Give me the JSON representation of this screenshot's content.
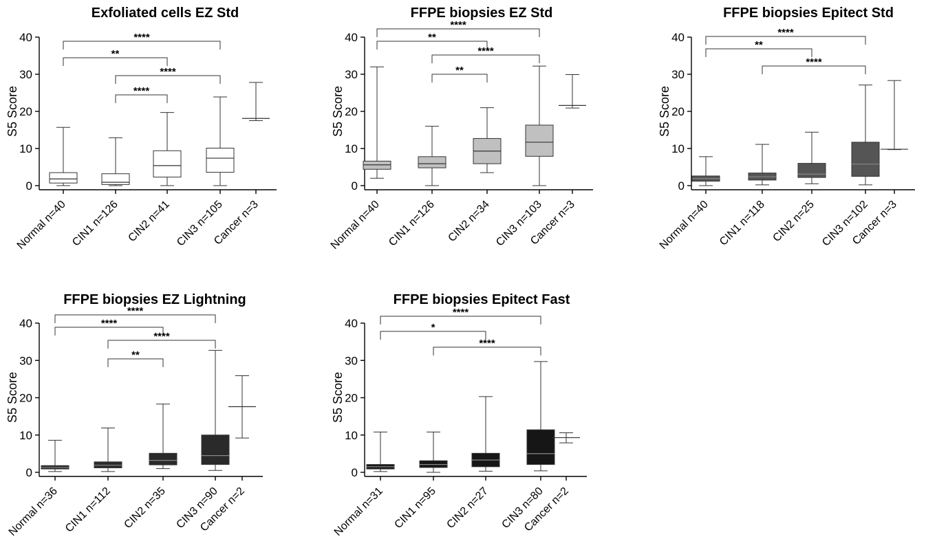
{
  "chart_data": [
    {
      "type": "box",
      "title": "Exfoliated cells EZ Std",
      "ylabel": "S5 Score",
      "ylim": [
        0,
        40
      ],
      "yticks": [
        "0",
        "10",
        "20",
        "30",
        "40"
      ],
      "box_color": "#ffffff",
      "categories": [
        "Normal n=40",
        "CIN1 n=126",
        "CIN2 n=41",
        "CIN3 n=105",
        "Cancer n=3"
      ],
      "boxes": [
        {
          "min": 0,
          "q1": 0.7,
          "median": 1.8,
          "q3": 3.5,
          "max": 15.7
        },
        {
          "min": 0,
          "q1": 0.3,
          "median": 0.9,
          "q3": 3.2,
          "max": 12.9
        },
        {
          "min": 0,
          "q1": 2.3,
          "median": 5.4,
          "q3": 9.4,
          "max": 19.7
        },
        {
          "min": 0,
          "q1": 3.6,
          "median": 7.4,
          "q3": 10.1,
          "max": 23.9
        },
        {
          "min": 17.5,
          "q1": 18.1,
          "median": 18.1,
          "q3": 18.1,
          "max": 27.8
        }
      ],
      "significance": [
        {
          "from": 0,
          "to": 3,
          "label": "****"
        },
        {
          "from": 0,
          "to": 2,
          "label": "**"
        },
        {
          "from": 1,
          "to": 3,
          "label": "****"
        },
        {
          "from": 1,
          "to": 2,
          "label": "****"
        }
      ]
    },
    {
      "type": "box",
      "title": "FFPE biopsies EZ Std",
      "ylabel": "S5 Score",
      "ylim": [
        0,
        40
      ],
      "yticks": [
        "0",
        "10",
        "20",
        "30",
        "40"
      ],
      "box_color": "#c0c0c0",
      "categories": [
        "Normal n=40",
        "CIN1 n=126",
        "CIN2 n=34",
        "CIN3 n=103",
        "Cancer n=3"
      ],
      "boxes": [
        {
          "min": 2,
          "q1": 4.4,
          "median": 5.6,
          "q3": 6.6,
          "max": 32
        },
        {
          "min": 0,
          "q1": 4.8,
          "median": 5.9,
          "q3": 7.8,
          "max": 16
        },
        {
          "min": 3.5,
          "q1": 5.9,
          "median": 9.3,
          "q3": 12.7,
          "max": 21
        },
        {
          "min": 0,
          "q1": 7.9,
          "median": 11.7,
          "q3": 16.3,
          "max": 32.2
        },
        {
          "min": 20.9,
          "q1": 21.6,
          "median": 21.6,
          "q3": 21.6,
          "max": 29.9
        }
      ],
      "significance": [
        {
          "from": 0,
          "to": 3,
          "label": "****"
        },
        {
          "from": 0,
          "to": 2,
          "label": "**"
        },
        {
          "from": 1,
          "to": 3,
          "label": "****"
        },
        {
          "from": 1,
          "to": 2,
          "label": "**"
        }
      ]
    },
    {
      "type": "box",
      "title": "FFPE biopsies Epitect Std",
      "ylabel": "S5 Score",
      "ylim": [
        0,
        40
      ],
      "yticks": [
        "0",
        "10",
        "20",
        "30",
        "40"
      ],
      "box_color": "#555555",
      "categories": [
        "Normal n=40",
        "CIN1 n=118",
        "CIN2 n=25",
        "CIN3 n=102",
        "Cancer n=3"
      ],
      "boxes": [
        {
          "min": 0,
          "q1": 1.2,
          "median": 1.9,
          "q3": 2.6,
          "max": 7.8
        },
        {
          "min": 0.2,
          "q1": 1.5,
          "median": 2.4,
          "q3": 3.4,
          "max": 11.1
        },
        {
          "min": 0.5,
          "q1": 2.2,
          "median": 3.1,
          "q3": 6,
          "max": 14.4
        },
        {
          "min": 0.2,
          "q1": 2.5,
          "median": 5.8,
          "q3": 11.7,
          "max": 27.1
        },
        {
          "min": 9.7,
          "q1": 9.8,
          "median": 9.8,
          "q3": 9.8,
          "max": 28.3
        }
      ],
      "significance": [
        {
          "from": 0,
          "to": 3,
          "label": "****"
        },
        {
          "from": 0,
          "to": 2,
          "label": "**"
        },
        {
          "from": 1,
          "to": 3,
          "label": "****"
        }
      ]
    },
    {
      "type": "box",
      "title": "FFPE biopsies EZ Lightning",
      "ylabel": "S5 Score",
      "ylim": [
        0,
        40
      ],
      "yticks": [
        "0",
        "10",
        "20",
        "30",
        "40"
      ],
      "box_color": "#2a2a2a",
      "categories": [
        "Normal n=36",
        "CIN1 n=112",
        "CIN2 n=35",
        "CIN3 n=90",
        "Cancer n=2"
      ],
      "boxes": [
        {
          "min": 0.2,
          "q1": 0.9,
          "median": 1.3,
          "q3": 1.8,
          "max": 8.6
        },
        {
          "min": 0.2,
          "q1": 1.2,
          "median": 1.9,
          "q3": 2.8,
          "max": 11.9
        },
        {
          "min": 1,
          "q1": 2,
          "median": 3.2,
          "q3": 5.1,
          "max": 18.3
        },
        {
          "min": 0.5,
          "q1": 2.1,
          "median": 4.5,
          "q3": 10,
          "max": 32.7
        },
        {
          "min": 9.2,
          "q1": 17.6,
          "median": 17.6,
          "q3": 17.6,
          "max": 25.9
        }
      ],
      "significance": [
        {
          "from": 0,
          "to": 3,
          "label": "****"
        },
        {
          "from": 0,
          "to": 2,
          "label": "****"
        },
        {
          "from": 1,
          "to": 3,
          "label": "****"
        },
        {
          "from": 1,
          "to": 2,
          "label": "**"
        }
      ]
    },
    {
      "type": "box",
      "title": "FFPE biopsies Epitect Fast",
      "ylabel": "S5 Score",
      "ylim": [
        0,
        40
      ],
      "yticks": [
        "0",
        "10",
        "20",
        "30",
        "40"
      ],
      "box_color": "#161616",
      "categories": [
        "Normal n=31",
        "CIN1 n=95",
        "CIN2 n=27",
        "CIN3 n=80",
        "Cancer n=2"
      ],
      "boxes": [
        {
          "min": 0.2,
          "q1": 0.9,
          "median": 1.5,
          "q3": 2.1,
          "max": 10.8
        },
        {
          "min": 0,
          "q1": 1.3,
          "median": 2.1,
          "q3": 3.1,
          "max": 10.8
        },
        {
          "min": 0.3,
          "q1": 1.5,
          "median": 3.3,
          "q3": 5.1,
          "max": 20.3
        },
        {
          "min": 0.4,
          "q1": 2.1,
          "median": 5,
          "q3": 11.4,
          "max": 29.7
        },
        {
          "min": 7.9,
          "q1": 9.3,
          "median": 9.3,
          "q3": 9.3,
          "max": 10.6
        }
      ],
      "significance": [
        {
          "from": 0,
          "to": 3,
          "label": "****"
        },
        {
          "from": 0,
          "to": 2,
          "label": "*"
        },
        {
          "from": 1,
          "to": 3,
          "label": "****"
        }
      ]
    }
  ]
}
